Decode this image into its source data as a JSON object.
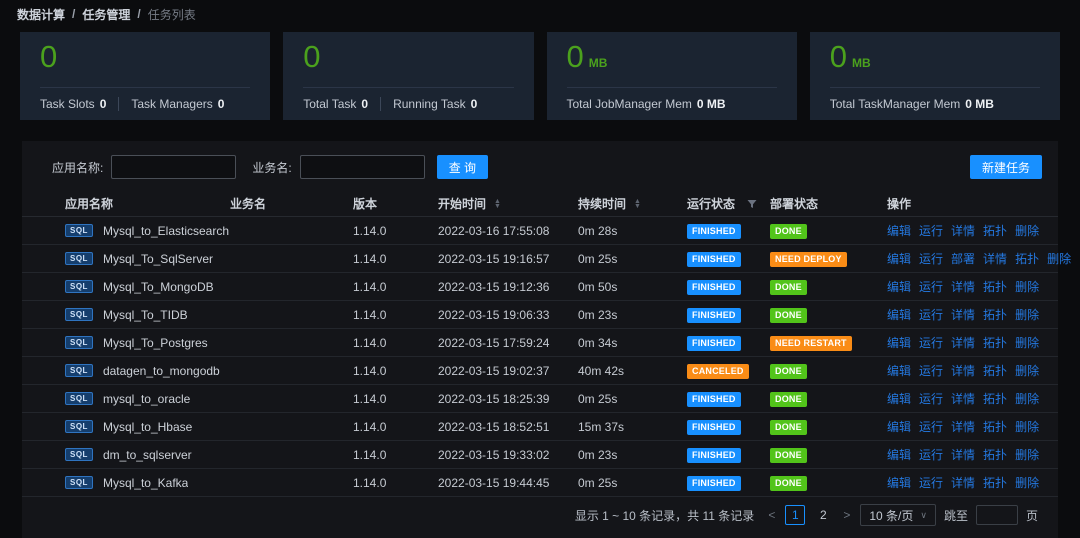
{
  "breadcrumb": {
    "separator": "/",
    "items": [
      "数据计算",
      "任务管理",
      "任务列表"
    ]
  },
  "stats": [
    {
      "value": "0",
      "unit": "",
      "metrics": [
        {
          "label": "Task Slots",
          "value": "0"
        },
        {
          "label": "Task Managers",
          "value": "0"
        }
      ]
    },
    {
      "value": "0",
      "unit": "",
      "metrics": [
        {
          "label": "Total Task",
          "value": "0"
        },
        {
          "label": "Running Task",
          "value": "0"
        }
      ]
    },
    {
      "value": "0",
      "unit": "MB",
      "metrics": [
        {
          "label": "Total JobManager Mem",
          "value": "0 MB"
        }
      ]
    },
    {
      "value": "0",
      "unit": "MB",
      "metrics": [
        {
          "label": "Total TaskManager Mem",
          "value": "0 MB"
        }
      ]
    }
  ],
  "filters": {
    "app_name_label": "应用名称:",
    "business_name_label": "业务名:",
    "app_name_value": "",
    "business_name_value": "",
    "search_button": "查 询",
    "new_task_button": "新建任务"
  },
  "table": {
    "columns": [
      {
        "key": "app_name",
        "label": "应用名称"
      },
      {
        "key": "business_name",
        "label": "业务名"
      },
      {
        "key": "version",
        "label": "版本"
      },
      {
        "key": "start_time",
        "label": "开始时间",
        "sortable": true
      },
      {
        "key": "duration",
        "label": "持续时间",
        "sortable": true
      },
      {
        "key": "run_status",
        "label": "运行状态",
        "filterable": true
      },
      {
        "key": "deploy_status",
        "label": "部署状态"
      },
      {
        "key": "actions",
        "label": "操作"
      }
    ],
    "rows": [
      {
        "badge": "SQL",
        "app_name": "Mysql_to_Elasticsearch",
        "business_name": "",
        "version": "1.14.0",
        "start_time": "2022-03-16 17:55:08",
        "duration": "0m 28s",
        "run_status": "FINISHED",
        "deploy_status": "DONE",
        "actions": [
          "编辑",
          "运行",
          "详情",
          "拓扑",
          "删除"
        ]
      },
      {
        "badge": "SQL",
        "app_name": "Mysql_To_SqlServer",
        "business_name": "",
        "version": "1.14.0",
        "start_time": "2022-03-15 19:16:57",
        "duration": "0m 25s",
        "run_status": "FINISHED",
        "deploy_status": "NEED DEPLOY",
        "actions": [
          "编辑",
          "运行",
          "部署",
          "详情",
          "拓扑",
          "删除"
        ]
      },
      {
        "badge": "SQL",
        "app_name": "Mysql_To_MongoDB",
        "business_name": "",
        "version": "1.14.0",
        "start_time": "2022-03-15 19:12:36",
        "duration": "0m 50s",
        "run_status": "FINISHED",
        "deploy_status": "DONE",
        "actions": [
          "编辑",
          "运行",
          "详情",
          "拓扑",
          "删除"
        ]
      },
      {
        "badge": "SQL",
        "app_name": "Mysql_To_TIDB",
        "business_name": "",
        "version": "1.14.0",
        "start_time": "2022-03-15 19:06:33",
        "duration": "0m 23s",
        "run_status": "FINISHED",
        "deploy_status": "DONE",
        "actions": [
          "编辑",
          "运行",
          "详情",
          "拓扑",
          "删除"
        ]
      },
      {
        "badge": "SQL",
        "app_name": "Mysql_To_Postgres",
        "business_name": "",
        "version": "1.14.0",
        "start_time": "2022-03-15 17:59:24",
        "duration": "0m 34s",
        "run_status": "FINISHED",
        "deploy_status": "NEED RESTART",
        "actions": [
          "编辑",
          "运行",
          "详情",
          "拓扑",
          "删除"
        ]
      },
      {
        "badge": "SQL",
        "app_name": "datagen_to_mongodb",
        "business_name": "",
        "version": "1.14.0",
        "start_time": "2022-03-15 19:02:37",
        "duration": "40m 42s",
        "run_status": "CANCELED",
        "deploy_status": "DONE",
        "actions": [
          "编辑",
          "运行",
          "详情",
          "拓扑",
          "删除"
        ]
      },
      {
        "badge": "SQL",
        "app_name": "mysql_to_oracle",
        "business_name": "",
        "version": "1.14.0",
        "start_time": "2022-03-15 18:25:39",
        "duration": "0m 25s",
        "run_status": "FINISHED",
        "deploy_status": "DONE",
        "actions": [
          "编辑",
          "运行",
          "详情",
          "拓扑",
          "删除"
        ]
      },
      {
        "badge": "SQL",
        "app_name": "Mysql_to_Hbase",
        "business_name": "",
        "version": "1.14.0",
        "start_time": "2022-03-15 18:52:51",
        "duration": "15m 37s",
        "run_status": "FINISHED",
        "deploy_status": "DONE",
        "actions": [
          "编辑",
          "运行",
          "详情",
          "拓扑",
          "删除"
        ]
      },
      {
        "badge": "SQL",
        "app_name": "dm_to_sqlserver",
        "business_name": "",
        "version": "1.14.0",
        "start_time": "2022-03-15 19:33:02",
        "duration": "0m 23s",
        "run_status": "FINISHED",
        "deploy_status": "DONE",
        "actions": [
          "编辑",
          "运行",
          "详情",
          "拓扑",
          "删除"
        ]
      },
      {
        "badge": "SQL",
        "app_name": "Mysql_to_Kafka",
        "business_name": "",
        "version": "1.14.0",
        "start_time": "2022-03-15 19:44:45",
        "duration": "0m 25s",
        "run_status": "FINISHED",
        "deploy_status": "DONE",
        "actions": [
          "编辑",
          "运行",
          "详情",
          "拓扑",
          "删除"
        ]
      }
    ]
  },
  "status_colors": {
    "FINISHED": "#1890ff",
    "CANCELED": "#fa8c16",
    "DONE": "#52c41a",
    "NEED DEPLOY": "#fa8c16",
    "NEED RESTART": "#fa8c16"
  },
  "action_keys": {
    "编辑": "edit",
    "运行": "run",
    "部署": "deploy",
    "详情": "detail",
    "拓扑": "topology",
    "删除": "delete"
  },
  "pagination": {
    "summary": "显示 1 ~ 10 条记录，共 11 条记录",
    "prev": "<",
    "next": ">",
    "pages": [
      "1",
      "2"
    ],
    "current_page": "1",
    "page_size": "10 条/页",
    "jump_label": "跳至",
    "jump_value": "",
    "jump_suffix": "页"
  },
  "colors": {
    "accent_blue": "#1890ff",
    "green": "#52c41a",
    "orange": "#fa8c16",
    "value_green": "#4ba11d",
    "link_blue": "#2478e0"
  }
}
